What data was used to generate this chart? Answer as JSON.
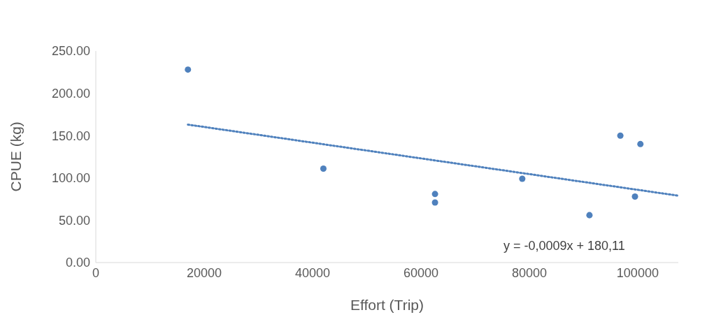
{
  "chart_data": {
    "type": "scatter",
    "xlabel": "Effort (Trip)",
    "ylabel": "CPUE (kg)",
    "xlim": [
      0,
      107500
    ],
    "xticks": [
      0,
      20000,
      40000,
      60000,
      80000,
      100000
    ],
    "ylim": [
      0,
      250
    ],
    "yticks": [
      {
        "value": 0,
        "label": "0.00"
      },
      {
        "value": 50,
        "label": "50.00"
      },
      {
        "value": 100,
        "label": "100.00"
      },
      {
        "value": 150,
        "label": "150.00"
      },
      {
        "value": 200,
        "label": "200.00"
      },
      {
        "value": 250,
        "label": "250.00"
      }
    ],
    "grid": false,
    "legend": false,
    "marker": "circle",
    "series": [
      {
        "color": "#4f81bd",
        "x": [
          17000,
          42000,
          62600,
          62600,
          78700,
          91100,
          96800,
          100500,
          99500
        ],
        "values": [
          228,
          111,
          81,
          71,
          99,
          56,
          150,
          140,
          78
        ]
      },
      {
        "type": "line",
        "color": "#4f81bd",
        "marker": "none",
        "line_style": "dotted",
        "x": [
          17000,
          107500
        ],
        "values": [
          163,
          79
        ]
      }
    ],
    "annotations": [
      "y = -0,0009x + 180,11"
    ]
  }
}
